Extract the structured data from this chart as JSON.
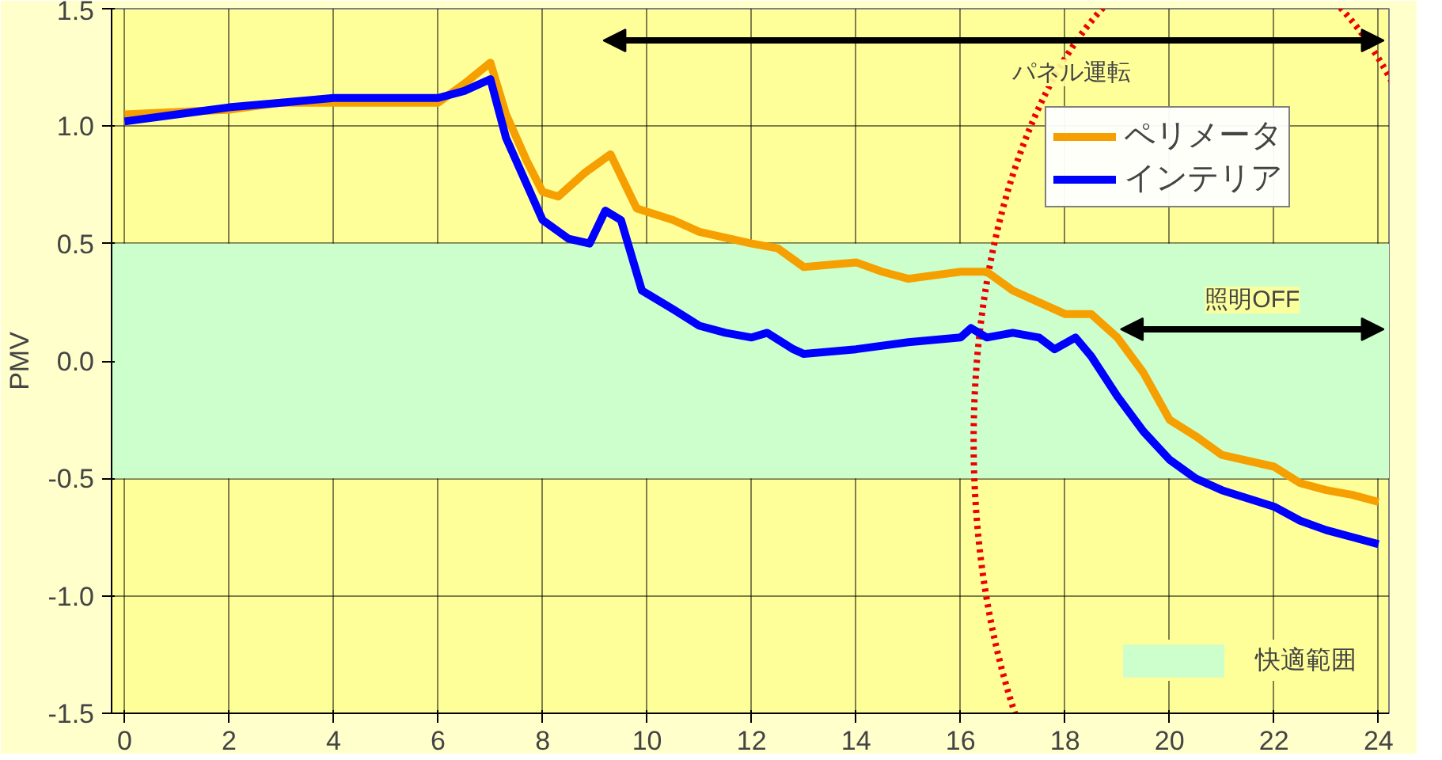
{
  "chart_data": {
    "type": "line",
    "ylabel": "PMV",
    "xlim": [
      -0.25,
      24.2
    ],
    "ylim": [
      -1.5,
      1.5
    ],
    "xticks": [
      0,
      2,
      4,
      6,
      8,
      10,
      12,
      14,
      16,
      18,
      20,
      22,
      24
    ],
    "yticks": [
      {
        "value": 1.5,
        "label": "1.5"
      },
      {
        "value": 1,
        "label": "1.0"
      },
      {
        "value": 0.5,
        "label": "0.5"
      },
      {
        "value": 0,
        "label": "0.0"
      },
      {
        "value": -0.5,
        "label": "-0.5"
      },
      {
        "value": -1,
        "label": "-1.0"
      },
      {
        "value": -1.5,
        "label": "-1.5"
      }
    ],
    "grid": true,
    "legend": "right",
    "line_style": "solid",
    "marker": "none",
    "series": [
      {
        "name": "ペリメータ",
        "color": "#f5a000",
        "x": [
          0,
          1,
          2,
          3,
          4,
          5,
          6,
          6.5,
          7,
          7.3,
          7.7,
          8,
          8.3,
          8.8,
          9.3,
          9.8,
          10.5,
          11,
          12,
          12.5,
          13,
          14,
          14.5,
          15,
          16,
          16.5,
          17,
          17.5,
          18,
          18.5,
          19,
          19.5,
          20,
          20.5,
          21,
          22,
          22.5,
          23,
          23.5,
          24
        ],
        "values": [
          1.05,
          1.06,
          1.07,
          1.1,
          1.1,
          1.1,
          1.1,
          1.18,
          1.27,
          1.05,
          0.85,
          0.72,
          0.7,
          0.8,
          0.88,
          0.65,
          0.6,
          0.55,
          0.5,
          0.48,
          0.4,
          0.42,
          0.38,
          0.35,
          0.38,
          0.38,
          0.3,
          0.25,
          0.2,
          0.2,
          0.1,
          -0.05,
          -0.25,
          -0.32,
          -0.4,
          -0.45,
          -0.52,
          -0.55,
          -0.57,
          -0.6
        ]
      },
      {
        "name": "インテリア",
        "color": "#0000ff",
        "x": [
          0,
          1,
          2,
          3,
          4,
          5,
          6,
          6.5,
          7,
          7.3,
          7.7,
          8,
          8.5,
          8.9,
          9.2,
          9.5,
          9.9,
          10.5,
          11,
          11.5,
          12,
          12.3,
          12.8,
          13,
          14,
          15,
          16,
          16.2,
          16.5,
          17,
          17.5,
          17.8,
          18.2,
          18.5,
          19,
          19.5,
          20,
          20.5,
          21,
          22,
          22.5,
          23,
          23.5,
          24
        ],
        "values": [
          1.02,
          1.05,
          1.08,
          1.1,
          1.12,
          1.12,
          1.12,
          1.15,
          1.2,
          0.95,
          0.75,
          0.6,
          0.52,
          0.5,
          0.64,
          0.6,
          0.3,
          0.22,
          0.15,
          0.12,
          0.1,
          0.12,
          0.05,
          0.03,
          0.05,
          0.08,
          0.1,
          0.14,
          0.1,
          0.12,
          0.1,
          0.05,
          0.1,
          0.02,
          -0.15,
          -0.3,
          -0.42,
          -0.5,
          -0.55,
          -0.62,
          -0.68,
          -0.72,
          -0.75,
          -0.78
        ]
      }
    ],
    "bands": [
      {
        "axis": "y",
        "from": -0.5,
        "to": 0.5,
        "label": "快適範囲",
        "color": "#ccffcc"
      }
    ],
    "annotations": [
      "パネル運転",
      "照明OFF"
    ]
  }
}
